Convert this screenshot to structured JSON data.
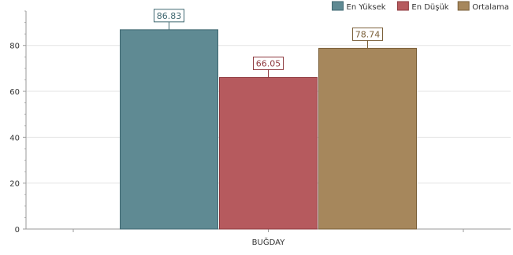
{
  "chart_data": {
    "type": "bar",
    "categories": [
      "BUĞDAY"
    ],
    "series": [
      {
        "name": "En Yüksek",
        "values": [
          86.83
        ],
        "color": "#5f8a93",
        "border": "#3f6770"
      },
      {
        "name": "En Düşük",
        "values": [
          66.05
        ],
        "color": "#b65a5e",
        "border": "#8e3a3f"
      },
      {
        "name": "Ortalama",
        "values": [
          78.74
        ],
        "color": "#a6875c",
        "border": "#7a5f38"
      }
    ],
    "title": "",
    "xlabel": "",
    "ylabel": "",
    "ylim": [
      0,
      95
    ],
    "yticks": [
      0,
      20,
      40,
      60,
      80
    ],
    "grid": true,
    "legend_position": "top-right",
    "data_labels": true
  }
}
